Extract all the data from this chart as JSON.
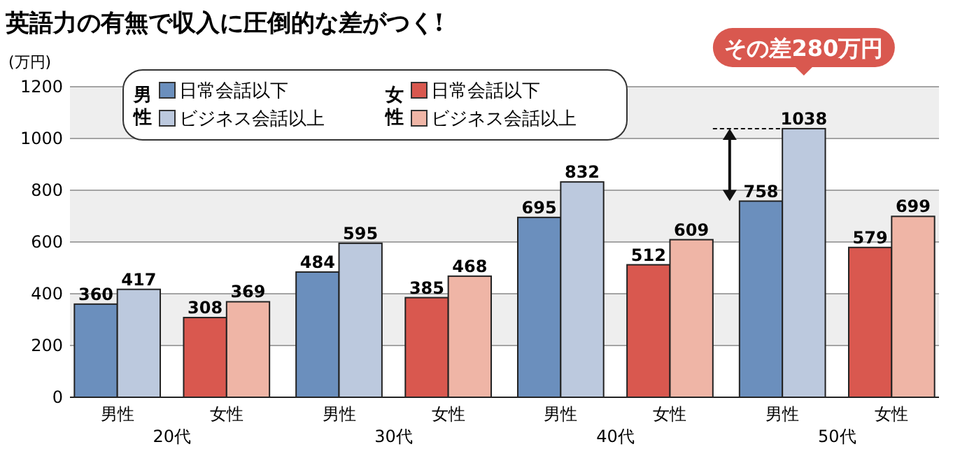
{
  "chart_data": {
    "type": "bar",
    "title": "英語力の有無で収入に圧倒的な差がつく!",
    "ylabel": "(万円)",
    "categories": [
      "20代",
      "30代",
      "40代",
      "50代"
    ],
    "series": [
      {
        "name": "日常会話以下",
        "color": "#6b8fbd",
        "values": [
          360,
          484,
          695,
          758
        ]
      },
      {
        "name": "ビジネス会話以上",
        "color": "#bcc9de",
        "values": [
          417,
          595,
          832,
          1038
        ]
      },
      {
        "name": "日常会話以下",
        "color": "#d9584f",
        "values": [
          308,
          385,
          512,
          579
        ]
      },
      {
        "name": "ビジネス会話以上",
        "color": "#efb5a6",
        "values": [
          369,
          468,
          609,
          699
        ]
      }
    ],
    "ylim": [
      0,
      1200
    ],
    "yticks": [
      0,
      200,
      400,
      600,
      800,
      1000,
      1200
    ],
    "grid": "y",
    "data_labels": true,
    "legend": "top left",
    "bands": [
      {
        "axis": "y",
        "from": 200,
        "to": 400,
        "color": "#eeeeee"
      },
      {
        "axis": "y",
        "from": 600,
        "to": 800,
        "color": "#eeeeee"
      },
      {
        "axis": "y",
        "from": 1000,
        "to": 1200,
        "color": "#eeeeee"
      }
    ],
    "annotations": [
      "男性",
      "女性",
      "男性",
      "女性",
      "男性",
      "女性",
      "男性",
      "女性",
      "男性",
      "女性",
      "その差280万円"
    ]
  }
}
